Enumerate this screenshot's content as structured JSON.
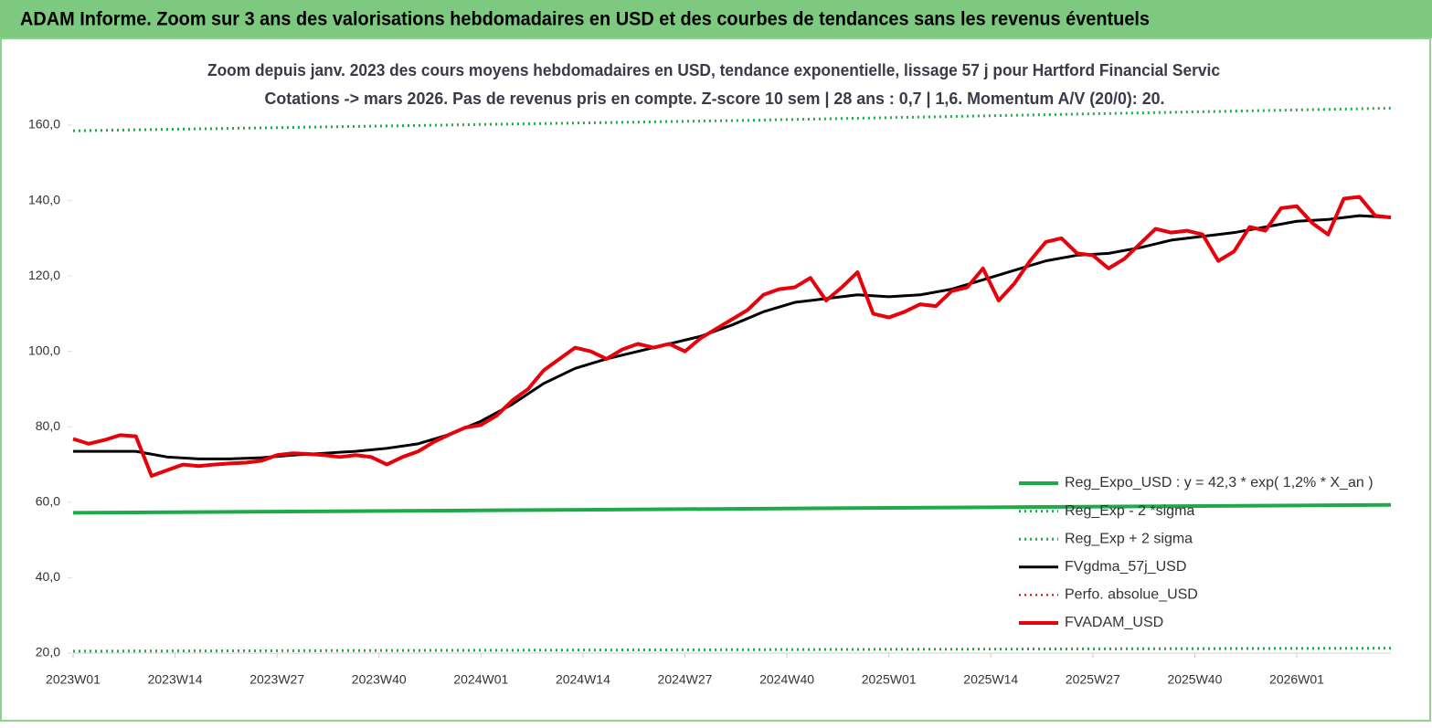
{
  "header": {
    "title": "ADAM Informe. Zoom sur 3 ans des valorisations hebdomadaires en USD et des courbes de tendances sans les revenus éventuels"
  },
  "chart_data": {
    "type": "line",
    "title": "Zoom depuis janv. 2023 des cours moyens hebdomadaires en USD, tendance exponentielle, lissage 57 j pour Hartford Financial Servic",
    "subtitle": "Cotations -> mars 2026. Pas de revenus pris en compte. Z-score 10 sem | 28 ans : 0,7 | 1,6. Momentum A/V (20/0): 20.",
    "xlim": [
      0,
      168
    ],
    "xticks": [
      {
        "value": 0,
        "label": "2023W01"
      },
      {
        "value": 13,
        "label": "2023W14"
      },
      {
        "value": 26,
        "label": "2023W27"
      },
      {
        "value": 39,
        "label": "2023W40"
      },
      {
        "value": 52,
        "label": "2024W01"
      },
      {
        "value": 65,
        "label": "2024W14"
      },
      {
        "value": 78,
        "label": "2024W27"
      },
      {
        "value": 91,
        "label": "2024W40"
      },
      {
        "value": 104,
        "label": "2025W01"
      },
      {
        "value": 117,
        "label": "2025W14"
      },
      {
        "value": 130,
        "label": "2025W27"
      },
      {
        "value": 143,
        "label": "2025W40"
      },
      {
        "value": 156,
        "label": "2026W01"
      }
    ],
    "ylim": [
      20,
      160
    ],
    "yticks": [
      {
        "value": 20,
        "label": "20,0"
      },
      {
        "value": 40,
        "label": "40,0"
      },
      {
        "value": 60,
        "label": "60,0"
      },
      {
        "value": 80,
        "label": "80,0"
      },
      {
        "value": 100,
        "label": "100,0"
      },
      {
        "value": 120,
        "label": "120,0"
      },
      {
        "value": 140,
        "label": "140,0"
      },
      {
        "value": 160,
        "label": "160,0"
      }
    ],
    "grid": false,
    "legend": "lower right",
    "series": [
      {
        "name": "Reg_Expo_USD : y = 42,3 * exp( 1,2% *  X_an )",
        "color": "#1faa4a",
        "dash": "solid",
        "width": 4,
        "x": [
          0,
          56,
          112,
          168
        ],
        "values": [
          57.2,
          57.9,
          58.6,
          59.3
        ]
      },
      {
        "name": "Reg_Exp - 2 *sigma",
        "color": "#1faa4a",
        "dash": "dotted",
        "width": 3,
        "x": [
          0,
          84,
          168
        ],
        "values": [
          20.5,
          20.9,
          21.3
        ]
      },
      {
        "name": "Reg_Exp + 2 sigma",
        "color": "#1faa4a",
        "dash": "dotted",
        "width": 3,
        "x": [
          0,
          84,
          168
        ],
        "values": [
          158.5,
          161.2,
          164.5
        ]
      },
      {
        "name": "FVgdma_57j_USD",
        "color": "#000000",
        "dash": "solid",
        "width": 3,
        "x": [
          0,
          4,
          8,
          12,
          16,
          20,
          24,
          28,
          32,
          36,
          40,
          44,
          48,
          52,
          56,
          60,
          64,
          68,
          72,
          76,
          80,
          84,
          88,
          92,
          96,
          100,
          104,
          108,
          112,
          116,
          120,
          124,
          128,
          132,
          136,
          140,
          144,
          148,
          152,
          156,
          160,
          164,
          168
        ],
        "values": [
          73.5,
          73.5,
          73.5,
          72,
          71.5,
          71.5,
          71.8,
          72.5,
          73,
          73.5,
          74.3,
          75.5,
          78,
          81.5,
          86,
          91.5,
          95.5,
          98,
          100,
          102,
          104,
          107,
          110.5,
          113,
          114,
          115,
          114.5,
          115,
          116.5,
          119,
          121.5,
          124,
          125.5,
          126,
          127.5,
          129.5,
          130.5,
          131.5,
          133,
          134.5,
          135,
          136,
          135.5
        ]
      },
      {
        "name": "Perfo. absolue_USD",
        "color": "#c00000",
        "dash": "dotted",
        "width": 2,
        "x": [],
        "values": []
      },
      {
        "name": "FVADAM_USD",
        "color": "#e8000b",
        "dash": "solid",
        "width": 4,
        "x": [
          0,
          2,
          4,
          6,
          8,
          10,
          12,
          14,
          16,
          18,
          20,
          22,
          24,
          26,
          28,
          30,
          32,
          34,
          36,
          38,
          40,
          42,
          44,
          46,
          48,
          50,
          52,
          54,
          56,
          58,
          60,
          62,
          64,
          66,
          68,
          70,
          72,
          74,
          76,
          78,
          80,
          82,
          84,
          86,
          88,
          90,
          92,
          94,
          96,
          98,
          100,
          102,
          104,
          106,
          108,
          110,
          112,
          114,
          116,
          118,
          120,
          122,
          124,
          126,
          128,
          130,
          132,
          134,
          136,
          138,
          140,
          142,
          144,
          146,
          148,
          150,
          152,
          154,
          156,
          158,
          160,
          162,
          164,
          166,
          168
        ],
        "values": [
          76.8,
          75.5,
          76.5,
          77.8,
          77.5,
          67,
          68.5,
          70,
          69.6,
          70,
          70.3,
          70.5,
          71,
          72.5,
          73,
          72.8,
          72.5,
          72,
          72.5,
          72,
          70,
          72,
          73.5,
          76,
          78,
          79.8,
          80.5,
          83,
          87,
          90,
          95,
          98,
          101,
          100,
          98,
          100.5,
          102,
          101,
          102,
          100,
          103.5,
          106,
          108.5,
          111,
          115,
          116.5,
          117,
          119.5,
          113.5,
          117,
          121,
          110,
          109,
          110.5,
          112.5,
          112,
          116,
          117,
          122,
          113.5,
          118,
          124,
          129,
          130,
          126,
          125.5,
          122,
          124.5,
          128.5,
          132.5,
          131.5,
          132,
          131,
          124,
          126.5,
          133,
          132,
          138,
          138.5,
          134,
          131,
          140.5,
          141,
          136,
          135.5
        ]
      }
    ]
  }
}
